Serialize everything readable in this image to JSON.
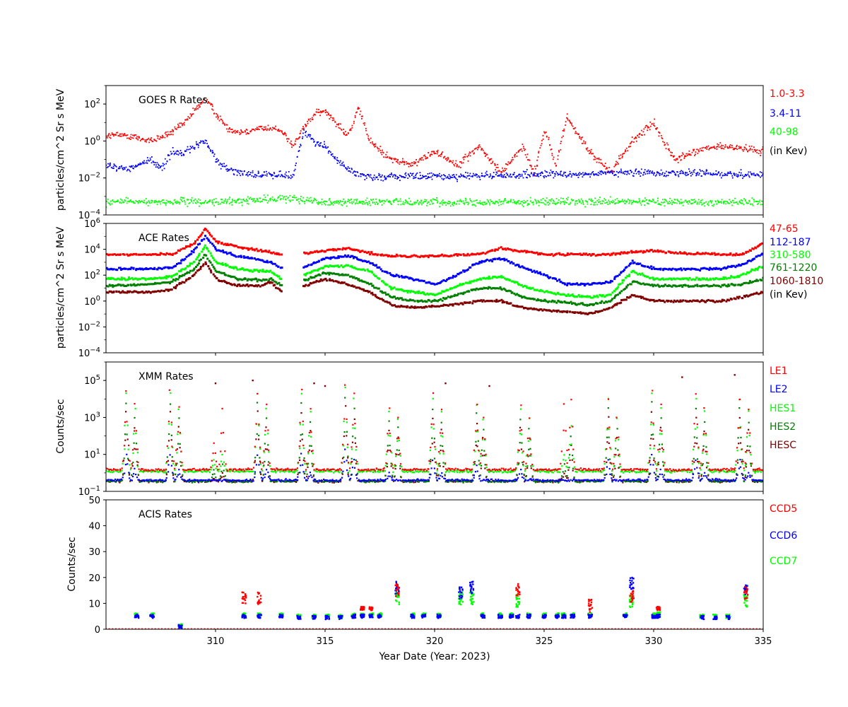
{
  "figure": {
    "xlabel": "Year Date (Year: 2023)",
    "xlim": [
      305,
      335
    ],
    "xticks": [
      310,
      315,
      320,
      325,
      330,
      335
    ],
    "tick_labels": [
      "310",
      "315",
      "320",
      "325",
      "330",
      "335"
    ]
  },
  "chart_data": [
    {
      "type": "scatter",
      "title": "GOES R Rates",
      "ylabel": "particles/cm^2 Sr s MeV",
      "yscale": "log",
      "ylim": [
        0.0001,
        1000
      ],
      "yticks": [
        0.0001,
        0.01,
        1,
        100
      ],
      "ytick_labels": [
        {
          "b": "10",
          "e": "−4"
        },
        {
          "b": "10",
          "e": "−2"
        },
        {
          "b": "10",
          "e": "0"
        },
        {
          "b": "10",
          "e": "2"
        }
      ],
      "legend_placement": "right",
      "legend": [
        {
          "label": "1.0-3.3",
          "color": "#ff0000"
        },
        {
          "label": "3.4-11",
          "color": "#0000ff"
        },
        {
          "label": "40-98",
          "color": "#00ff00"
        },
        {
          "label": "(in Kev)",
          "color": "#000000"
        }
      ],
      "series": [
        {
          "name": "1.0-3.3",
          "color": "#ff0000",
          "x": [
            305,
            306,
            307,
            308,
            308.5,
            309,
            309.5,
            310,
            310.5,
            311,
            312,
            313,
            313.5,
            314,
            314.5,
            315,
            315.5,
            316,
            316.3,
            316.5,
            317,
            318,
            319,
            320,
            321,
            322,
            323,
            324,
            324.5,
            325,
            325.5,
            326,
            327,
            328,
            329,
            329.5,
            330,
            330.5,
            331,
            332,
            333,
            334,
            335
          ],
          "y": [
            2,
            2,
            1,
            3,
            8,
            40,
            200,
            30,
            5,
            3,
            5,
            4,
            0.5,
            5,
            30,
            40,
            10,
            2,
            10,
            70,
            1,
            0.1,
            0.05,
            0.3,
            0.05,
            0.5,
            0.02,
            0.5,
            0.02,
            4,
            0.05,
            20,
            0.3,
            0.02,
            1,
            3,
            10,
            0.6,
            0.1,
            0.3,
            0.5,
            0.4,
            0.3
          ]
        },
        {
          "name": "3.4-11",
          "color": "#0000ff",
          "x": [
            305,
            306,
            307,
            307.5,
            308,
            308.5,
            309,
            309.5,
            310,
            310.5,
            311,
            312,
            313,
            313.5,
            314,
            314.5,
            315,
            315.5,
            316,
            316.5,
            317,
            320,
            325,
            330,
            335
          ],
          "y": [
            0.05,
            0.03,
            0.1,
            0.03,
            0.3,
            0.2,
            0.5,
            1,
            0.1,
            0.03,
            0.02,
            0.015,
            0.015,
            0.012,
            3,
            1,
            0.5,
            0.1,
            0.03,
            0.015,
            0.012,
            0.012,
            0.015,
            0.02,
            0.015
          ]
        },
        {
          "name": "40-98",
          "color": "#00ff00",
          "x": [
            305,
            310,
            313.5,
            315,
            320,
            325,
            330,
            335
          ],
          "y": [
            0.0005,
            0.0005,
            0.0008,
            0.0005,
            0.0005,
            0.0005,
            0.0005,
            0.0005
          ]
        }
      ]
    },
    {
      "type": "scatter",
      "title": "ACE Rates",
      "ylabel": "particles/cm^2 Sr s MeV",
      "yscale": "log",
      "ylim": [
        0.0001,
        1000000
      ],
      "yticks": [
        0.0001,
        0.01,
        1,
        100,
        10000,
        1000000
      ],
      "ytick_labels": [
        {
          "b": "10",
          "e": "−4"
        },
        {
          "b": "10",
          "e": "−2"
        },
        {
          "b": "10",
          "e": "0"
        },
        {
          "b": "10",
          "e": "2"
        },
        {
          "b": "10",
          "e": "4"
        },
        {
          "b": "10",
          "e": "6"
        }
      ],
      "legend_placement": "right",
      "legend": [
        {
          "label": "47-65",
          "color": "#ff0000"
        },
        {
          "label": "112-187",
          "color": "#0000ff"
        },
        {
          "label": "310-580",
          "color": "#00ff00"
        },
        {
          "label": "761-1220",
          "color": "#008000"
        },
        {
          "label": "1060-1810",
          "color": "#800000"
        },
        {
          "label": "(in Kev)",
          "color": "#000000"
        }
      ],
      "series": [
        {
          "name": "47-65",
          "color": "#ff0000",
          "x": [
            305,
            307,
            308,
            308.5,
            309,
            309.5,
            310,
            311,
            312,
            312.5,
            313
          ],
          "y": [
            4000,
            4000,
            4000,
            12000,
            30000,
            400000,
            40000,
            15000,
            8000,
            6000,
            4000
          ]
        },
        {
          "name": "47-65",
          "color": "#ff0000",
          "x": [
            314,
            315,
            316,
            317,
            318,
            320,
            322,
            323,
            325,
            328,
            329,
            330,
            331,
            333,
            334,
            335
          ],
          "y": [
            5000,
            8000,
            12000,
            5000,
            3000,
            3000,
            4000,
            12000,
            4000,
            4000,
            6000,
            8000,
            5000,
            4000,
            4000,
            30000
          ]
        },
        {
          "name": "112-187",
          "color": "#0000ff",
          "x": [
            305,
            307,
            308,
            308.5,
            309,
            309.5,
            310,
            311,
            312,
            312.5,
            313
          ],
          "y": [
            300,
            300,
            400,
            1500,
            8000,
            100000,
            10000,
            3000,
            1500,
            1000,
            300
          ]
        },
        {
          "name": "112-187",
          "color": "#0000ff",
          "x": [
            314,
            315,
            316,
            317,
            318,
            319,
            320,
            321,
            322,
            323,
            324,
            325,
            326,
            327,
            328,
            329,
            330,
            331,
            333,
            334,
            335
          ],
          "y": [
            400,
            2000,
            3000,
            1000,
            100,
            50,
            20,
            100,
            1000,
            2000,
            400,
            100,
            20,
            20,
            30,
            1000,
            300,
            300,
            300,
            600,
            5000
          ]
        },
        {
          "name": "310-580",
          "color": "#00ff00",
          "x": [
            305,
            307,
            308,
            308.5,
            309,
            309.5,
            310,
            311,
            312,
            312.5,
            313
          ],
          "y": [
            50,
            50,
            80,
            300,
            1000,
            20000,
            1000,
            300,
            200,
            200,
            50
          ]
        },
        {
          "name": "310-580",
          "color": "#00ff00",
          "x": [
            314,
            315,
            316,
            317,
            318,
            319,
            320,
            321,
            322,
            323,
            324,
            325,
            326,
            327,
            328,
            329,
            330,
            331,
            333,
            334,
            335
          ],
          "y": [
            100,
            500,
            500,
            200,
            10,
            5,
            3,
            15,
            50,
            80,
            15,
            5,
            3,
            2,
            3,
            200,
            50,
            50,
            50,
            100,
            500
          ]
        },
        {
          "name": "761-1220",
          "color": "#008000",
          "x": [
            305,
            307,
            308,
            308.5,
            309,
            309.5,
            310,
            311,
            312,
            312.5,
            313
          ],
          "y": [
            15,
            20,
            30,
            100,
            300,
            4000,
            200,
            50,
            40,
            50,
            15
          ]
        },
        {
          "name": "761-1220",
          "color": "#008000",
          "x": [
            314,
            315,
            316,
            317,
            318,
            319,
            320,
            321,
            322,
            323,
            324,
            325,
            326,
            327,
            328,
            329,
            330,
            331,
            333,
            334,
            335
          ],
          "y": [
            40,
            150,
            100,
            20,
            2,
            1,
            1,
            3,
            10,
            10,
            2,
            1,
            0.8,
            0.5,
            1,
            30,
            15,
            15,
            15,
            20,
            50
          ]
        },
        {
          "name": "1060-1810",
          "color": "#800000",
          "x": [
            305,
            307,
            308,
            308.5,
            309,
            309.5,
            310,
            311,
            312,
            312.5,
            313
          ],
          "y": [
            5,
            5,
            8,
            30,
            100,
            1000,
            50,
            15,
            15,
            30,
            5
          ]
        },
        {
          "name": "1060-1810",
          "color": "#800000",
          "x": [
            314,
            315,
            316,
            317,
            318,
            319,
            320,
            321,
            322,
            323,
            324,
            325,
            326,
            327,
            328,
            329,
            330,
            331,
            333,
            334,
            335
          ],
          "y": [
            15,
            50,
            20,
            5,
            0.5,
            0.3,
            0.4,
            0.6,
            1,
            1,
            0.3,
            0.2,
            0.15,
            0.1,
            0.3,
            3,
            1,
            1,
            1,
            2,
            5
          ]
        }
      ]
    },
    {
      "type": "scatter",
      "title": "XMM Rates",
      "ylabel": "Counts/sec",
      "yscale": "log",
      "ylim": [
        0.1,
        1000000
      ],
      "yticks": [
        0.1,
        10,
        1000,
        100000
      ],
      "ytick_labels": [
        {
          "b": "10",
          "e": "−1"
        },
        {
          "b": "10",
          "e": "1"
        },
        {
          "b": "10",
          "e": "3"
        },
        {
          "b": "10",
          "e": "5"
        }
      ],
      "legend_placement": "right",
      "legend": [
        {
          "label": "LE1",
          "color": "#ff0000"
        },
        {
          "label": "LE2",
          "color": "#0000ff"
        },
        {
          "label": "HES1",
          "color": "#00ff00"
        },
        {
          "label": "HES2",
          "color": "#008000"
        },
        {
          "label": "HESC",
          "color": "#800000"
        }
      ],
      "peaks": {
        "x": [
          305.9,
          306.3,
          307.9,
          308.3,
          309.9,
          310.3,
          311.9,
          312.3,
          313.9,
          314.3,
          315.9,
          316.3,
          317.9,
          318.3,
          319.9,
          320.3,
          321.9,
          322.2,
          323.9,
          324.3,
          325.9,
          326.2,
          327.9,
          328.3,
          329.9,
          330.3,
          331.9,
          332.3,
          333.9,
          334.3
        ],
        "LE1": [
          30000,
          5000,
          30000,
          4000,
          40,
          3000,
          20000,
          5000,
          30000,
          3000,
          50000,
          20000,
          3000,
          1000,
          20000,
          3000,
          5000,
          1000,
          5000,
          1000,
          5000,
          10000,
          10000,
          1000,
          30000,
          5000,
          20000,
          3000,
          10000,
          3000
        ],
        "HES1": [
          20000,
          3000,
          20000,
          3000,
          5,
          10,
          20000,
          3000,
          20000,
          2000,
          40000,
          10000,
          2000,
          800,
          10000,
          2000,
          5000,
          800,
          3000,
          800,
          10,
          300,
          10000,
          800,
          20000,
          3000,
          10000,
          2000,
          10000,
          2000
        ]
      },
      "outliers": {
        "x": [
          310,
          311.7,
          314.5,
          315,
          320.5,
          322.5,
          331.3,
          333.7
        ],
        "y": [
          70000,
          100000,
          70000,
          50000,
          70000,
          50000,
          150000,
          200000
        ]
      },
      "baselines": {
        "LE1": 1.5,
        "LE2": 0.4,
        "HES1": 1.2,
        "HES2": 0.35,
        "HESC": 0.35
      }
    },
    {
      "type": "scatter",
      "title": "ACIS Rates",
      "ylabel": "Counts/sec",
      "yscale": "linear",
      "ylim": [
        0,
        50
      ],
      "yticks": [
        0,
        10,
        20,
        30,
        40,
        50
      ],
      "ytick_labels": [
        "0",
        "10",
        "20",
        "30",
        "40",
        "50"
      ],
      "legend_placement": "right",
      "legend": [
        {
          "label": "CCD5",
          "color": "#ff0000"
        },
        {
          "label": "CCD6",
          "color": "#0000ff"
        },
        {
          "label": "CCD7",
          "color": "#00ff00"
        }
      ],
      "clusters": [
        {
          "x": 306.4,
          "CCD6": 5,
          "CCD7": 5.5
        },
        {
          "x": 307.1,
          "CCD6": 5,
          "CCD7": 5.5
        },
        {
          "x": 308.4,
          "CCD6": 1,
          "CCD7": 1.5
        },
        {
          "x": 311.3,
          "CCD5": 12,
          "CCD6": 5,
          "CCD7": 5.5
        },
        {
          "x": 312,
          "CCD5": 12,
          "CCD6": 5,
          "CCD7": 5.5
        },
        {
          "x": 313,
          "CCD6": 5,
          "CCD7": 5.5
        },
        {
          "x": 313.8,
          "CCD6": 4.5,
          "CCD7": 5
        },
        {
          "x": 314.5,
          "CCD6": 4.5,
          "CCD7": 5
        },
        {
          "x": 315.1,
          "CCD6": 4.5,
          "CCD7": 5
        },
        {
          "x": 315.7,
          "CCD6": 4.5,
          "CCD7": 5
        },
        {
          "x": 316.3,
          "CCD6": 5,
          "CCD7": 5.5
        },
        {
          "x": 316.7,
          "CCD5": 8,
          "CCD6": 5,
          "CCD7": 5.5
        },
        {
          "x": 317.1,
          "CCD5": 8,
          "CCD6": 5,
          "CCD7": 5.5
        },
        {
          "x": 317.5,
          "CCD6": 5,
          "CCD7": 5.5
        },
        {
          "x": 318.3,
          "CCD5": 15,
          "CCD6": 16,
          "CCD7": 12
        },
        {
          "x": 319,
          "CCD6": 5,
          "CCD7": 5.5
        },
        {
          "x": 319.5,
          "CCD6": 5,
          "CCD7": 5.5
        },
        {
          "x": 320.2,
          "CCD6": 5,
          "CCD7": 5.5
        },
        {
          "x": 321.2,
          "CCD6": 14,
          "CCD7": 12
        },
        {
          "x": 321.7,
          "CCD6": 16,
          "CCD7": 12
        },
        {
          "x": 322.2,
          "CCD6": 5,
          "CCD7": 5.5
        },
        {
          "x": 323,
          "CCD6": 5,
          "CCD7": 5.5
        },
        {
          "x": 323.5,
          "CCD6": 5,
          "CCD7": 5.5
        },
        {
          "x": 323.8,
          "CCD5": 15,
          "CCD6": 5,
          "CCD7": 11
        },
        {
          "x": 324.3,
          "CCD6": 5,
          "CCD7": 5.5
        },
        {
          "x": 325,
          "CCD6": 5,
          "CCD7": 5.5
        },
        {
          "x": 325.6,
          "CCD6": 5,
          "CCD7": 5.5
        },
        {
          "x": 325.9,
          "CCD6": 5,
          "CCD7": 5.5
        },
        {
          "x": 326.3,
          "CCD6": 5,
          "CCD7": 5.5
        },
        {
          "x": 327.1,
          "CCD5": 9,
          "CCD6": 5,
          "CCD7": 5.5
        },
        {
          "x": 328.7,
          "CCD6": 5,
          "CCD7": 5.5
        },
        {
          "x": 329,
          "CCD5": 13,
          "CCD6": 18,
          "CCD7": 11
        },
        {
          "x": 330,
          "CCD6": 5,
          "CCD7": 5.5
        },
        {
          "x": 330.2,
          "CCD5": 8,
          "CCD6": 5,
          "CCD7": 6
        },
        {
          "x": 332.2,
          "CCD6": 4.5,
          "CCD7": 5
        },
        {
          "x": 332.8,
          "CCD6": 4.5,
          "CCD7": 5
        },
        {
          "x": 333.4,
          "CCD6": 4.5,
          "CCD7": 5
        },
        {
          "x": 334.2,
          "CCD5": 14,
          "CCD6": 15,
          "CCD7": 11
        }
      ]
    }
  ]
}
